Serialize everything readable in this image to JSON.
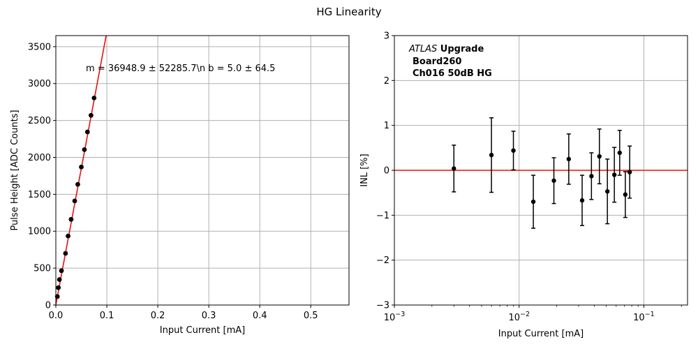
{
  "figure": {
    "title": "HG Linearity"
  },
  "chart_data": [
    {
      "type": "scatter",
      "xlabel": "Input Current [mA]",
      "ylabel": "Pulse Height [ADC Counts]",
      "xlim": [
        0,
        0.575
      ],
      "ylim": [
        0,
        3650
      ],
      "xticks": [
        0.0,
        0.1,
        0.2,
        0.3,
        0.4,
        0.5
      ],
      "xtick_labels": [
        "0.0",
        "0.1",
        "0.2",
        "0.3",
        "0.4",
        "0.5"
      ],
      "yticks": [
        0,
        500,
        1000,
        1500,
        2000,
        2500,
        3000,
        3500
      ],
      "ytick_labels": [
        "0",
        "500",
        "1000",
        "1500",
        "2000",
        "2500",
        "3000",
        "3500"
      ],
      "grid": true,
      "annotation": "m = 36948.9 ± 52285.7\\n b = 5.0 ± 64.5",
      "fit_line": {
        "slope": 36948.9,
        "intercept": 5.0,
        "color": "#e8120c"
      },
      "points_color": "#000000",
      "points": [
        {
          "x": 0.003,
          "y": 115
        },
        {
          "x": 0.005,
          "y": 235
        },
        {
          "x": 0.007,
          "y": 345
        },
        {
          "x": 0.011,
          "y": 465
        },
        {
          "x": 0.019,
          "y": 700
        },
        {
          "x": 0.024,
          "y": 935
        },
        {
          "x": 0.03,
          "y": 1160
        },
        {
          "x": 0.037,
          "y": 1410
        },
        {
          "x": 0.043,
          "y": 1635
        },
        {
          "x": 0.05,
          "y": 1870
        },
        {
          "x": 0.056,
          "y": 2105
        },
        {
          "x": 0.062,
          "y": 2345
        },
        {
          "x": 0.069,
          "y": 2570
        },
        {
          "x": 0.075,
          "y": 2805
        }
      ]
    },
    {
      "type": "scatter",
      "xscale": "log",
      "xlabel": "Input Current [mA]",
      "ylabel": "INL [%]",
      "xlim": [
        0.001,
        0.2239
      ],
      "ylim": [
        -3,
        3
      ],
      "xticks": [
        0.001,
        0.01,
        0.1
      ],
      "xtick_labels_base": [
        "10",
        "10",
        "10"
      ],
      "xtick_labels_exp": [
        "−3",
        "−2",
        "−1"
      ],
      "yticks": [
        -3,
        -2,
        -1,
        0,
        1,
        2,
        3
      ],
      "ytick_labels": [
        "−3",
        "−2",
        "−1",
        "0",
        "1",
        "2",
        "3"
      ],
      "grid": true,
      "reference_line": {
        "y": 0,
        "color": "#e8120c"
      },
      "annotation_lines": [
        {
          "italic": "ATLAS",
          "bold": " Upgrade"
        },
        {
          "bold": "Board260"
        },
        {
          "bold": "Ch016 50dB HG"
        }
      ],
      "points": [
        {
          "x": 0.003,
          "y": 0.04,
          "err": 0.52
        },
        {
          "x": 0.006,
          "y": 0.34,
          "err": 0.83
        },
        {
          "x": 0.009,
          "y": 0.44,
          "err": 0.43
        },
        {
          "x": 0.013,
          "y": -0.7,
          "err": 0.59
        },
        {
          "x": 0.019,
          "y": -0.23,
          "err": 0.51
        },
        {
          "x": 0.025,
          "y": 0.25,
          "err": 0.56
        },
        {
          "x": 0.032,
          "y": -0.67,
          "err": 0.56
        },
        {
          "x": 0.038,
          "y": -0.13,
          "err": 0.52
        },
        {
          "x": 0.044,
          "y": 0.31,
          "err": 0.61
        },
        {
          "x": 0.051,
          "y": -0.47,
          "err": 0.72
        },
        {
          "x": 0.058,
          "y": -0.1,
          "err": 0.61
        },
        {
          "x": 0.064,
          "y": 0.39,
          "err": 0.5
        },
        {
          "x": 0.071,
          "y": -0.54,
          "err": 0.51
        },
        {
          "x": 0.077,
          "y": -0.04,
          "err": 0.58
        }
      ]
    }
  ]
}
